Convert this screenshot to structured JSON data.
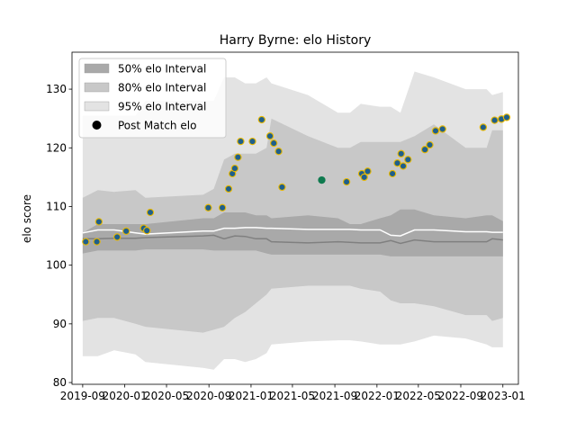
{
  "chart_data": {
    "type": "area",
    "title": "Harry Byrne: elo History",
    "xlabel": "",
    "ylabel": "elo score",
    "xlim": [
      "2019-08-01",
      "2023-02-15"
    ],
    "ylim": [
      79.7,
      136.3
    ],
    "x_ticks": [
      "2019-09",
      "2020-01",
      "2020-05",
      "2020-09",
      "2021-01",
      "2021-05",
      "2021-09",
      "2022-01",
      "2022-05",
      "2022-09",
      "2023-01"
    ],
    "y_ticks": [
      80,
      90,
      100,
      110,
      120,
      130
    ],
    "grid": false,
    "legend": {
      "position": "top-left",
      "entries": [
        "50% elo Interval",
        "80% elo Interval",
        "95% elo Interval",
        "Post Match elo"
      ]
    },
    "colors": {
      "band_50": "#a9a9a9",
      "band_80": "#c8c8c8",
      "band_95": "#e3e3e3",
      "mean_line": "#ffffff",
      "median_line": "#808080",
      "point_fill": "#1f5f8b",
      "point_edge": "#e8b800",
      "highlight_point_fill": "#0f7a4f"
    },
    "bands": {
      "x": [
        "2019-09-01",
        "2019-10-15",
        "2019-12-01",
        "2020-02-01",
        "2020-03-01",
        "2020-08-15",
        "2020-09-15",
        "2020-10-15",
        "2020-11-15",
        "2020-12-15",
        "2021-01-15",
        "2021-02-15",
        "2021-03-01",
        "2021-06-15",
        "2021-09-10",
        "2021-10-15",
        "2021-11-15",
        "2022-01-10",
        "2022-02-10",
        "2022-03-10",
        "2022-04-20",
        "2022-06-15",
        "2022-09-15",
        "2022-11-15",
        "2022-12-01",
        "2023-01-01"
      ],
      "p95_high": [
        125.5,
        125.5,
        125.5,
        125.5,
        128,
        128,
        128,
        132,
        132,
        131,
        131,
        132,
        131,
        129,
        126,
        126,
        127.5,
        127,
        127,
        126,
        133,
        132,
        130,
        130,
        129,
        129.5
      ],
      "p80_high": [
        111.5,
        112.8,
        112.5,
        112.8,
        111.5,
        112,
        113,
        118,
        119,
        119,
        119,
        120,
        125,
        122,
        120,
        120,
        121,
        121,
        121,
        121,
        122,
        124,
        120,
        120,
        123,
        123
      ],
      "p50_high": [
        105.5,
        107,
        107,
        107,
        107,
        108,
        108,
        109,
        109,
        109,
        108.5,
        108.5,
        108,
        108.5,
        108,
        107,
        107,
        108,
        108.5,
        109.5,
        109.5,
        108.5,
        108,
        108.5,
        108.5,
        107.5
      ],
      "mean": [
        105.5,
        106,
        106,
        105.5,
        105.3,
        105.8,
        105.8,
        106.3,
        106.3,
        106.4,
        106.4,
        106.3,
        106.3,
        106.1,
        106.1,
        106.1,
        106,
        106,
        105.1,
        105,
        106,
        106,
        105.7,
        105.7,
        105.6,
        105.6
      ],
      "median": [
        104.5,
        104.5,
        104.6,
        104.6,
        104.7,
        105,
        105.1,
        104.5,
        105,
        104.9,
        104.5,
        104.5,
        104,
        103.8,
        104,
        103.9,
        103.8,
        103.8,
        104.2,
        103.7,
        104.3,
        104,
        104,
        104,
        104.5,
        104.3
      ],
      "p50_low": [
        102,
        102.5,
        102.5,
        102.5,
        102.7,
        102.7,
        102.5,
        102.5,
        102.5,
        102.5,
        102.5,
        102,
        101.8,
        101.8,
        101.8,
        101.8,
        101.8,
        101.8,
        101.5,
        101.5,
        101.5,
        101.5,
        101.5,
        101.5,
        101.5,
        101.5
      ],
      "p80_low": [
        90.5,
        91,
        91,
        90,
        89.5,
        88.5,
        89,
        89.5,
        91,
        92,
        93.5,
        95,
        96,
        96.5,
        96.5,
        96.5,
        96,
        95.5,
        94,
        93.5,
        93.5,
        93,
        91.5,
        91.5,
        90.5,
        91
      ],
      "p95_low": [
        84.5,
        84.5,
        85.5,
        84.8,
        83.5,
        82.5,
        82.2,
        84,
        84,
        83.5,
        84,
        85,
        86.5,
        87,
        87.2,
        87.2,
        87,
        86.5,
        86.5,
        86.5,
        87,
        88,
        87.5,
        86.5,
        86,
        86
      ]
    },
    "points": {
      "x": [
        "2019-09-10",
        "2019-10-12",
        "2019-10-18",
        "2019-12-10",
        "2020-01-05",
        "2020-02-25",
        "2020-03-05",
        "2020-03-15",
        "2020-08-30",
        "2020-10-10",
        "2020-10-28",
        "2020-11-08",
        "2020-11-15",
        "2020-11-24",
        "2020-12-02",
        "2021-01-05",
        "2021-02-01",
        "2021-02-25",
        "2021-03-08",
        "2021-03-22",
        "2021-04-01",
        "2021-07-25",
        "2021-10-05",
        "2021-11-18",
        "2021-11-25",
        "2021-12-05",
        "2022-02-15",
        "2022-03-01",
        "2022-03-12",
        "2022-03-18",
        "2022-04-01",
        "2022-05-20",
        "2022-06-03",
        "2022-06-20",
        "2022-07-10",
        "2022-11-05",
        "2022-12-08",
        "2022-12-28",
        "2023-01-12"
      ],
      "y": [
        104,
        104,
        107.4,
        104.8,
        105.8,
        106.3,
        105.9,
        109,
        109.8,
        109.8,
        113,
        115.6,
        116.5,
        118.4,
        121.1,
        121.1,
        124.8,
        122,
        120.8,
        119.4,
        113.3,
        114.5,
        114.2,
        115.6,
        115,
        116,
        115.6,
        117.4,
        119,
        116.9,
        118,
        119.7,
        120.5,
        122.9,
        123.2,
        123.5,
        124.7,
        124.9,
        125.2
      ],
      "highlight_index": 21
    }
  }
}
